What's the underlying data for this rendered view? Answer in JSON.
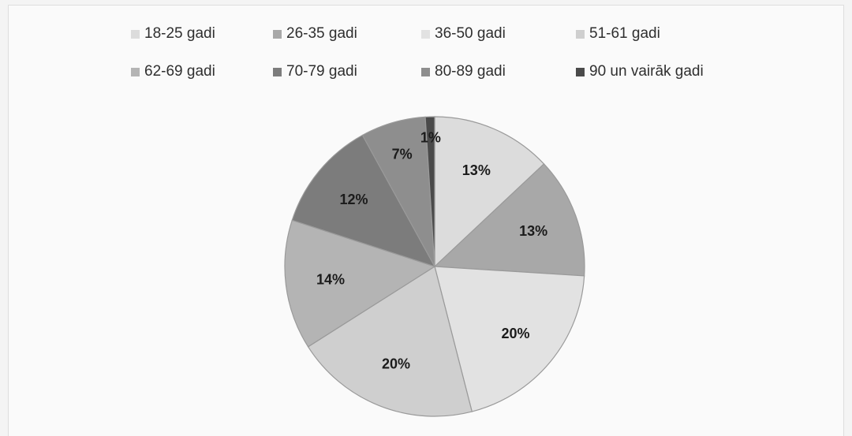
{
  "chart_data": {
    "type": "pie",
    "title": "",
    "legend_position": "top",
    "categories": [
      "18-25 gadi",
      "26-35 gadi",
      "36-50 gadi",
      "51-61 gadi",
      "62-69 gadi",
      "70-79 gadi",
      "80-89 gadi",
      "90 un vairāk gadi"
    ],
    "values": [
      13,
      13,
      20,
      20,
      14,
      12,
      7,
      1
    ],
    "labels": [
      "13%",
      "13%",
      "20%",
      "20%",
      "14%",
      "12%",
      "7%",
      "1%"
    ],
    "colors": [
      "#dcdcdc",
      "#a8a8a8",
      "#e2e2e2",
      "#cfcfcf",
      "#b4b4b4",
      "#7c7c7c",
      "#8e8e8e",
      "#4a4a4a"
    ]
  }
}
